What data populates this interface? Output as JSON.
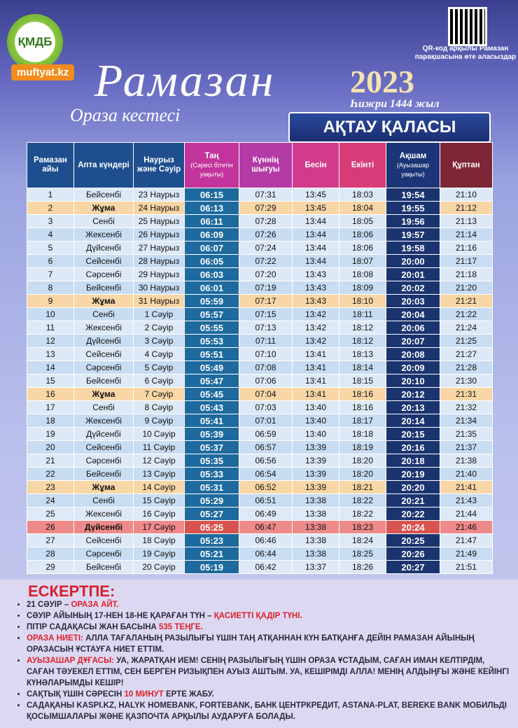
{
  "header": {
    "logo": "ҚМДБ",
    "site": "muftyat.kz",
    "title": "Рамазан",
    "subtitle": "Ораза кестесі",
    "year": "2023",
    "hijri": "Һижри 1444 жыл",
    "qr_text": "QR-код арқылы Рамазан парақшасына өте аласыздар"
  },
  "city": "АҚТАУ ҚАЛАСЫ",
  "table": {
    "columns": [
      {
        "title": "Рамазан айы"
      },
      {
        "title": "Апта күндері"
      },
      {
        "title": "Наурыз және Сәуір"
      },
      {
        "title": "Таң",
        "sub": "(Сәресі бітетін уақыты)",
        "color": "#c2349b"
      },
      {
        "title": "Күннің шығуы",
        "color": "#b43aa6"
      },
      {
        "title": "Бесін",
        "color": "#d23a8c"
      },
      {
        "title": "Екінті",
        "color": "#d83c78"
      },
      {
        "title": "Ақшам",
        "sub": "(Ауызашар уақыты)",
        "color": "#1c3576"
      },
      {
        "title": "Құптан",
        "color": "#7e2536"
      }
    ],
    "rows": [
      {
        "cells": [
          "1",
          "Бейсенбі",
          "23 Наурыз",
          "06:15",
          "07:31",
          "13:45",
          "18:03",
          "19:54",
          "21:10"
        ]
      },
      {
        "cells": [
          "2",
          "Жұма",
          "24 Наурыз",
          "06:13",
          "07:29",
          "13:45",
          "18:04",
          "19:55",
          "21:12"
        ],
        "color": "#f8d6a6"
      },
      {
        "cells": [
          "3",
          "Сенбі",
          "25 Наурыз",
          "06:11",
          "07:28",
          "13:44",
          "18:05",
          "19:56",
          "21:13"
        ]
      },
      {
        "cells": [
          "4",
          "Жексенбі",
          "26 Наурыз",
          "06:09",
          "07:26",
          "13:44",
          "18:06",
          "19:57",
          "21:14"
        ]
      },
      {
        "cells": [
          "5",
          "Дүйсенбі",
          "27 Наурыз",
          "06:07",
          "07:24",
          "13:44",
          "18:06",
          "19:58",
          "21:16"
        ]
      },
      {
        "cells": [
          "6",
          "Сейсенбі",
          "28 Наурыз",
          "06:05",
          "07:22",
          "13:44",
          "18:07",
          "20:00",
          "21:17"
        ]
      },
      {
        "cells": [
          "7",
          "Сәрсенбі",
          "29 Наурыз",
          "06:03",
          "07:20",
          "13:43",
          "18:08",
          "20:01",
          "21:18"
        ]
      },
      {
        "cells": [
          "8",
          "Бейсенбі",
          "30 Наурыз",
          "06:01",
          "07:19",
          "13:43",
          "18:09",
          "20:02",
          "21:20"
        ]
      },
      {
        "cells": [
          "9",
          "Жұма",
          "31 Наурыз",
          "05:59",
          "07:17",
          "13:43",
          "18:10",
          "20:03",
          "21:21"
        ],
        "color": "#f8d6a6"
      },
      {
        "cells": [
          "10",
          "Сенбі",
          "1 Сәуір",
          "05:57",
          "07:15",
          "13:42",
          "18:11",
          "20:04",
          "21:22"
        ]
      },
      {
        "cells": [
          "11",
          "Жексенбі",
          "2 Сәуір",
          "05:55",
          "07:13",
          "13:42",
          "18:12",
          "20:06",
          "21:24"
        ]
      },
      {
        "cells": [
          "12",
          "Дүйсенбі",
          "3 Сәуір",
          "05:53",
          "07:11",
          "13:42",
          "18:12",
          "20:07",
          "21:25"
        ]
      },
      {
        "cells": [
          "13",
          "Сейсенбі",
          "4 Сәуір",
          "05:51",
          "07:10",
          "13:41",
          "18:13",
          "20:08",
          "21:27"
        ]
      },
      {
        "cells": [
          "14",
          "Сәрсенбі",
          "5 Сәуір",
          "05:49",
          "07:08",
          "13:41",
          "18:14",
          "20:09",
          "21:28"
        ]
      },
      {
        "cells": [
          "15",
          "Бейсенбі",
          "6 Сәуір",
          "05:47",
          "07:06",
          "13:41",
          "18:15",
          "20:10",
          "21:30"
        ]
      },
      {
        "cells": [
          "16",
          "Жұма",
          "7 Сәуір",
          "05:45",
          "07:04",
          "13:41",
          "18:16",
          "20:12",
          "21:31"
        ],
        "color": "#f8d6a6"
      },
      {
        "cells": [
          "17",
          "Сенбі",
          "8 Сәуір",
          "05:43",
          "07:03",
          "13:40",
          "18:16",
          "20:13",
          "21:32"
        ]
      },
      {
        "cells": [
          "18",
          "Жексенбі",
          "9 Сәуір",
          "05:41",
          "07:01",
          "13:40",
          "18:17",
          "20:14",
          "21:34"
        ]
      },
      {
        "cells": [
          "19",
          "Дүйсенбі",
          "10 Сәуір",
          "05:39",
          "06:59",
          "13:40",
          "18:18",
          "20:15",
          "21:35"
        ]
      },
      {
        "cells": [
          "20",
          "Сейсенбі",
          "11 Сәуір",
          "05:37",
          "06:57",
          "13:39",
          "18:19",
          "20:16",
          "21:37"
        ]
      },
      {
        "cells": [
          "21",
          "Сәрсенбі",
          "12 Сәуір",
          "05:35",
          "06:56",
          "13:39",
          "18:20",
          "20:18",
          "21:38"
        ]
      },
      {
        "cells": [
          "22",
          "Бейсенбі",
          "13 Сәуір",
          "05:33",
          "06:54",
          "13:39",
          "18:20",
          "20:19",
          "21:40"
        ]
      },
      {
        "cells": [
          "23",
          "Жұма",
          "14 Сәуір",
          "05:31",
          "06:52",
          "13:39",
          "18:21",
          "20:20",
          "21:41"
        ],
        "color": "#f8d6a6"
      },
      {
        "cells": [
          "24",
          "Сенбі",
          "15 Сәуір",
          "05:29",
          "06:51",
          "13:38",
          "18:22",
          "20:21",
          "21:43"
        ]
      },
      {
        "cells": [
          "25",
          "Жексенбі",
          "16 Сәуір",
          "05:27",
          "06:49",
          "13:38",
          "18:22",
          "20:22",
          "21:44"
        ]
      },
      {
        "cells": [
          "26",
          "Дүйсенбі",
          "17 Сәуір",
          "05:25",
          "06:47",
          "13:38",
          "18:23",
          "20:24",
          "21:46"
        ],
        "color": "#ef8a8a",
        "time_color": "#d9534f"
      },
      {
        "cells": [
          "27",
          "Сейсенбі",
          "18 Сәуір",
          "05:23",
          "06:46",
          "13:38",
          "18:24",
          "20:25",
          "21:47"
        ]
      },
      {
        "cells": [
          "28",
          "Сәрсенбі",
          "19 Сәуір",
          "05:21",
          "06:44",
          "13:38",
          "18:25",
          "20:26",
          "21:49"
        ]
      },
      {
        "cells": [
          "29",
          "Бейсенбі",
          "20 Сәуір",
          "05:19",
          "06:42",
          "13:37",
          "18:26",
          "20:27",
          "21:51"
        ]
      }
    ]
  },
  "notes": {
    "title": "ЕСКЕРТПЕ:",
    "items": [
      [
        {
          "text": "21 СӘУІР – "
        },
        {
          "text": "ОРАЗА АЙТ.",
          "color": "#e0202a"
        }
      ],
      [
        {
          "text": "СӘУІР АЙЫНЫҢ 17-НЕН 18-НЕ ҚАРАҒАН ТҮН – "
        },
        {
          "text": "ҚАСИЕТТІ ҚАДІР ТҮНІ.",
          "color": "#e0202a"
        }
      ],
      [
        {
          "text": "ПІТІР САДАҚАСЫ ЖАН БАСЫНА "
        },
        {
          "text": "535 ТЕҢГЕ.",
          "color": "#e0202a"
        }
      ],
      [
        {
          "text": "ОРАЗА НИЕТІ:",
          "color": "#e0202a"
        },
        {
          "text": " АЛЛА ТАҒАЛАНЫҢ РАЗЫЛЫҒЫ ҮШІН ТАҢ АТҚАННАН КҮН БАТҚАНҒА ДЕЙІН РАМАЗАН АЙЫНЫҢ ОРАЗАСЫН ҰСТАУҒА НИЕТ ЕТТІМ."
        }
      ],
      [
        {
          "text": "АУЫЗАШАР ДҰҒАСЫ:",
          "color": "#e0202a"
        },
        {
          "text": " УА, ЖАРАТҚАН ИЕМ! СЕНІҢ РАЗЫЛЫҒЫҢ ҮШІН ОРАЗА ҰСТАДЫМ, САҒАН ИМАН КЕЛТІРДІМ, САҒАН ТӘУЕКЕЛ ЕТТІМ, СЕН БЕРГЕН РИЗЫҚПЕН АУЫЗ АШТЫМ. УА, КЕШІРІМДІ АЛЛА! МЕНІҢ АЛДЫҢҒЫ ЖӘНЕ КЕЙІНГІ КҮНӘЛАРЫМДЫ КЕШІР!"
        }
      ],
      [
        {
          "text": "САҚТЫҚ ҮШІН СӘРЕСІН "
        },
        {
          "text": "10 МИНУТ",
          "color": "#e0202a"
        },
        {
          "text": " ЕРТЕ ЖАБУ."
        }
      ],
      [
        {
          "text": "САДАҚАНЫ KASPI.KZ, HALYK HOMEBANK, FORTEBANK, БАНК ЦЕНТРКРЕДИТ, ASTANA-PLAT, BEREKE BANK МОБИЛЬДІ ҚОСЫМШАЛАРЫ ЖӘНЕ ҚАЗПОЧТА АРҚЫЛЫ АУДАРУҒА БОЛАДЫ."
        }
      ]
    ]
  }
}
